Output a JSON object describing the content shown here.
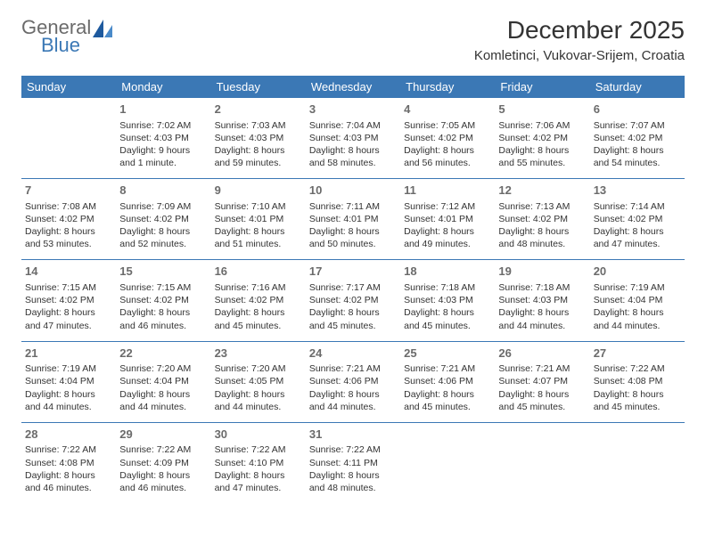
{
  "colors": {
    "header_bg": "#3b78b5",
    "header_text": "#ffffff",
    "cell_border": "#3b78b5",
    "body_text": "#333333",
    "daynum_text": "#6b6b6b",
    "logo_gray": "#6b6b6b",
    "logo_blue": "#3b78b5",
    "background": "#ffffff"
  },
  "typography": {
    "title_fontsize": 28,
    "subtitle_fontsize": 15,
    "header_fontsize": 13,
    "daynum_fontsize": 13,
    "cell_fontsize": 10.5,
    "font_family": "Arial"
  },
  "logo": {
    "part1": "General",
    "part2": "Blue"
  },
  "title": "December 2025",
  "subtitle": "Komletinci, Vukovar-Srijem, Croatia",
  "weekdays": [
    "Sunday",
    "Monday",
    "Tuesday",
    "Wednesday",
    "Thursday",
    "Friday",
    "Saturday"
  ],
  "leading_blanks": 1,
  "days": [
    {
      "n": "1",
      "sr": "Sunrise: 7:02 AM",
      "ss": "Sunset: 4:03 PM",
      "d1": "Daylight: 9 hours",
      "d2": "and 1 minute."
    },
    {
      "n": "2",
      "sr": "Sunrise: 7:03 AM",
      "ss": "Sunset: 4:03 PM",
      "d1": "Daylight: 8 hours",
      "d2": "and 59 minutes."
    },
    {
      "n": "3",
      "sr": "Sunrise: 7:04 AM",
      "ss": "Sunset: 4:03 PM",
      "d1": "Daylight: 8 hours",
      "d2": "and 58 minutes."
    },
    {
      "n": "4",
      "sr": "Sunrise: 7:05 AM",
      "ss": "Sunset: 4:02 PM",
      "d1": "Daylight: 8 hours",
      "d2": "and 56 minutes."
    },
    {
      "n": "5",
      "sr": "Sunrise: 7:06 AM",
      "ss": "Sunset: 4:02 PM",
      "d1": "Daylight: 8 hours",
      "d2": "and 55 minutes."
    },
    {
      "n": "6",
      "sr": "Sunrise: 7:07 AM",
      "ss": "Sunset: 4:02 PM",
      "d1": "Daylight: 8 hours",
      "d2": "and 54 minutes."
    },
    {
      "n": "7",
      "sr": "Sunrise: 7:08 AM",
      "ss": "Sunset: 4:02 PM",
      "d1": "Daylight: 8 hours",
      "d2": "and 53 minutes."
    },
    {
      "n": "8",
      "sr": "Sunrise: 7:09 AM",
      "ss": "Sunset: 4:02 PM",
      "d1": "Daylight: 8 hours",
      "d2": "and 52 minutes."
    },
    {
      "n": "9",
      "sr": "Sunrise: 7:10 AM",
      "ss": "Sunset: 4:01 PM",
      "d1": "Daylight: 8 hours",
      "d2": "and 51 minutes."
    },
    {
      "n": "10",
      "sr": "Sunrise: 7:11 AM",
      "ss": "Sunset: 4:01 PM",
      "d1": "Daylight: 8 hours",
      "d2": "and 50 minutes."
    },
    {
      "n": "11",
      "sr": "Sunrise: 7:12 AM",
      "ss": "Sunset: 4:01 PM",
      "d1": "Daylight: 8 hours",
      "d2": "and 49 minutes."
    },
    {
      "n": "12",
      "sr": "Sunrise: 7:13 AM",
      "ss": "Sunset: 4:02 PM",
      "d1": "Daylight: 8 hours",
      "d2": "and 48 minutes."
    },
    {
      "n": "13",
      "sr": "Sunrise: 7:14 AM",
      "ss": "Sunset: 4:02 PM",
      "d1": "Daylight: 8 hours",
      "d2": "and 47 minutes."
    },
    {
      "n": "14",
      "sr": "Sunrise: 7:15 AM",
      "ss": "Sunset: 4:02 PM",
      "d1": "Daylight: 8 hours",
      "d2": "and 47 minutes."
    },
    {
      "n": "15",
      "sr": "Sunrise: 7:15 AM",
      "ss": "Sunset: 4:02 PM",
      "d1": "Daylight: 8 hours",
      "d2": "and 46 minutes."
    },
    {
      "n": "16",
      "sr": "Sunrise: 7:16 AM",
      "ss": "Sunset: 4:02 PM",
      "d1": "Daylight: 8 hours",
      "d2": "and 45 minutes."
    },
    {
      "n": "17",
      "sr": "Sunrise: 7:17 AM",
      "ss": "Sunset: 4:02 PM",
      "d1": "Daylight: 8 hours",
      "d2": "and 45 minutes."
    },
    {
      "n": "18",
      "sr": "Sunrise: 7:18 AM",
      "ss": "Sunset: 4:03 PM",
      "d1": "Daylight: 8 hours",
      "d2": "and 45 minutes."
    },
    {
      "n": "19",
      "sr": "Sunrise: 7:18 AM",
      "ss": "Sunset: 4:03 PM",
      "d1": "Daylight: 8 hours",
      "d2": "and 44 minutes."
    },
    {
      "n": "20",
      "sr": "Sunrise: 7:19 AM",
      "ss": "Sunset: 4:04 PM",
      "d1": "Daylight: 8 hours",
      "d2": "and 44 minutes."
    },
    {
      "n": "21",
      "sr": "Sunrise: 7:19 AM",
      "ss": "Sunset: 4:04 PM",
      "d1": "Daylight: 8 hours",
      "d2": "and 44 minutes."
    },
    {
      "n": "22",
      "sr": "Sunrise: 7:20 AM",
      "ss": "Sunset: 4:04 PM",
      "d1": "Daylight: 8 hours",
      "d2": "and 44 minutes."
    },
    {
      "n": "23",
      "sr": "Sunrise: 7:20 AM",
      "ss": "Sunset: 4:05 PM",
      "d1": "Daylight: 8 hours",
      "d2": "and 44 minutes."
    },
    {
      "n": "24",
      "sr": "Sunrise: 7:21 AM",
      "ss": "Sunset: 4:06 PM",
      "d1": "Daylight: 8 hours",
      "d2": "and 44 minutes."
    },
    {
      "n": "25",
      "sr": "Sunrise: 7:21 AM",
      "ss": "Sunset: 4:06 PM",
      "d1": "Daylight: 8 hours",
      "d2": "and 45 minutes."
    },
    {
      "n": "26",
      "sr": "Sunrise: 7:21 AM",
      "ss": "Sunset: 4:07 PM",
      "d1": "Daylight: 8 hours",
      "d2": "and 45 minutes."
    },
    {
      "n": "27",
      "sr": "Sunrise: 7:22 AM",
      "ss": "Sunset: 4:08 PM",
      "d1": "Daylight: 8 hours",
      "d2": "and 45 minutes."
    },
    {
      "n": "28",
      "sr": "Sunrise: 7:22 AM",
      "ss": "Sunset: 4:08 PM",
      "d1": "Daylight: 8 hours",
      "d2": "and 46 minutes."
    },
    {
      "n": "29",
      "sr": "Sunrise: 7:22 AM",
      "ss": "Sunset: 4:09 PM",
      "d1": "Daylight: 8 hours",
      "d2": "and 46 minutes."
    },
    {
      "n": "30",
      "sr": "Sunrise: 7:22 AM",
      "ss": "Sunset: 4:10 PM",
      "d1": "Daylight: 8 hours",
      "d2": "and 47 minutes."
    },
    {
      "n": "31",
      "sr": "Sunrise: 7:22 AM",
      "ss": "Sunset: 4:11 PM",
      "d1": "Daylight: 8 hours",
      "d2": "and 48 minutes."
    }
  ]
}
